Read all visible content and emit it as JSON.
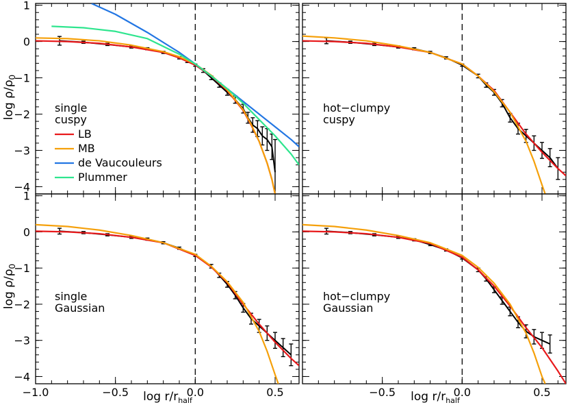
{
  "figure": {
    "xlabel": "log r/r",
    "xlabel_sub": "half",
    "ylabel": "log ρ/ρ",
    "ylabel_sub": "0"
  },
  "colors": {
    "LB": "#e8191b",
    "MB": "#f5a00a",
    "deVaucouleurs": "#2276e3",
    "Plummer": "#2ee58e",
    "data": "#000000"
  },
  "chart_data": [
    {
      "type": "line",
      "id": "single-cuspy",
      "labels": [
        "single",
        "cuspy"
      ],
      "legend": [
        "LB",
        "MB",
        "de Vaucouleurs",
        "Plummer"
      ],
      "xlim": [
        -1.0,
        0.65
      ],
      "ylim": [
        -4.2,
        1.05
      ],
      "xticks": [
        -1.0,
        -0.5,
        0.0,
        0.5
      ],
      "xticklabels": [
        "",
        "",
        "",
        ""
      ],
      "yticks": [
        1,
        0,
        -1,
        -2,
        -3,
        -4
      ],
      "yticklabels": [
        "1",
        "0",
        "−1",
        "−2",
        "−3",
        "−4"
      ],
      "series": [
        {
          "name": "LB",
          "color": "#e8191b",
          "x": [
            -1.0,
            -0.8,
            -0.6,
            -0.4,
            -0.2,
            -0.1,
            0.0,
            0.1,
            0.2,
            0.3,
            0.35,
            0.4,
            0.45,
            0.48,
            0.5
          ],
          "y": [
            0.02,
            0.0,
            -0.05,
            -0.15,
            -0.3,
            -0.45,
            -0.65,
            -0.95,
            -1.35,
            -1.9,
            -2.3,
            -2.75,
            -3.35,
            -3.8,
            -4.2
          ]
        },
        {
          "name": "MB",
          "color": "#f5a00a",
          "x": [
            -1.0,
            -0.8,
            -0.6,
            -0.4,
            -0.2,
            -0.1,
            0.0,
            0.1,
            0.2,
            0.3,
            0.35,
            0.4,
            0.45,
            0.48,
            0.5
          ],
          "y": [
            0.1,
            0.08,
            0.02,
            -0.1,
            -0.28,
            -0.42,
            -0.62,
            -0.93,
            -1.33,
            -1.88,
            -2.28,
            -2.75,
            -3.35,
            -3.8,
            -4.2
          ]
        },
        {
          "name": "de Vaucouleurs",
          "color": "#2276e3",
          "x": [
            -0.65,
            -0.5,
            -0.3,
            -0.1,
            0.0,
            0.1,
            0.2,
            0.3,
            0.4,
            0.5,
            0.6,
            0.65
          ],
          "y": [
            1.05,
            0.75,
            0.25,
            -0.3,
            -0.62,
            -0.95,
            -1.3,
            -1.65,
            -2.0,
            -2.35,
            -2.7,
            -2.9
          ]
        },
        {
          "name": "Plummer",
          "color": "#2ee58e",
          "x": [
            -0.9,
            -0.7,
            -0.5,
            -0.3,
            -0.1,
            0.0,
            0.1,
            0.2,
            0.3,
            0.4,
            0.5,
            0.6,
            0.65
          ],
          "y": [
            0.42,
            0.38,
            0.28,
            0.08,
            -0.35,
            -0.62,
            -0.95,
            -1.3,
            -1.7,
            -2.15,
            -2.6,
            -3.1,
            -3.4
          ]
        }
      ],
      "data_points": {
        "x": [
          -0.85,
          -0.7,
          -0.55,
          -0.4,
          -0.3,
          -0.2,
          -0.1,
          -0.05,
          0.0,
          0.05,
          0.1,
          0.15,
          0.2,
          0.25,
          0.3,
          0.33,
          0.36,
          0.39,
          0.42,
          0.45,
          0.48,
          0.5
        ],
        "y": [
          0.02,
          -0.02,
          -0.08,
          -0.15,
          -0.2,
          -0.3,
          -0.45,
          -0.55,
          -0.65,
          -0.8,
          -1.0,
          -1.2,
          -1.4,
          -1.6,
          -1.85,
          -2.1,
          -2.3,
          -2.4,
          -2.6,
          -2.7,
          -2.9,
          -3.6
        ],
        "err": [
          0.12,
          0.03,
          0.03,
          0.03,
          0.03,
          0.03,
          0.03,
          0.03,
          0.03,
          0.05,
          0.05,
          0.06,
          0.08,
          0.1,
          0.12,
          0.15,
          0.2,
          0.22,
          0.25,
          0.3,
          0.35,
          0.9
        ]
      }
    },
    {
      "type": "line",
      "id": "hot-clumpy-cuspy",
      "labels": [
        "hot−clumpy",
        "cuspy"
      ],
      "legend": [],
      "xlim": [
        -1.0,
        0.65
      ],
      "ylim": [
        -4.2,
        1.05
      ],
      "xticks": [
        -1.0,
        -0.5,
        0.0,
        0.5
      ],
      "xticklabels": [
        "",
        "",
        "",
        ""
      ],
      "yticks": [
        1,
        0,
        -1,
        -2,
        -3,
        -4
      ],
      "yticklabels": [
        "",
        "",
        "",
        "",
        "",
        ""
      ],
      "series": [
        {
          "name": "LB",
          "color": "#e8191b",
          "x": [
            -1.0,
            -0.8,
            -0.6,
            -0.4,
            -0.2,
            0.0,
            0.1,
            0.2,
            0.3,
            0.4,
            0.5,
            0.6,
            0.65
          ],
          "y": [
            0.02,
            0.0,
            -0.05,
            -0.15,
            -0.3,
            -0.62,
            -0.95,
            -1.35,
            -1.95,
            -2.55,
            -3.05,
            -3.5,
            -3.7
          ]
        },
        {
          "name": "MB",
          "color": "#f5a00a",
          "x": [
            -1.0,
            -0.8,
            -0.6,
            -0.4,
            -0.2,
            0.0,
            0.1,
            0.2,
            0.3,
            0.4,
            0.45,
            0.5,
            0.52
          ],
          "y": [
            0.15,
            0.1,
            0.02,
            -0.12,
            -0.3,
            -0.62,
            -0.95,
            -1.38,
            -1.95,
            -2.75,
            -3.3,
            -3.95,
            -4.2
          ]
        }
      ],
      "data_points": {
        "x": [
          -0.85,
          -0.7,
          -0.55,
          -0.4,
          -0.3,
          -0.2,
          -0.1,
          0.0,
          0.1,
          0.15,
          0.2,
          0.25,
          0.3,
          0.35,
          0.4,
          0.45,
          0.5,
          0.55,
          0.6
        ],
        "y": [
          0.02,
          -0.02,
          -0.08,
          -0.15,
          -0.2,
          -0.3,
          -0.45,
          -0.65,
          -0.95,
          -1.2,
          -1.4,
          -1.7,
          -2.1,
          -2.4,
          -2.6,
          -2.8,
          -3.0,
          -3.2,
          -3.5
        ],
        "err": [
          0.08,
          0.03,
          0.03,
          0.03,
          0.03,
          0.03,
          0.03,
          0.03,
          0.05,
          0.06,
          0.08,
          0.1,
          0.12,
          0.15,
          0.18,
          0.2,
          0.22,
          0.25,
          0.3
        ]
      }
    },
    {
      "type": "line",
      "id": "single-gaussian",
      "labels": [
        "single",
        "Gaussian"
      ],
      "legend": [],
      "xlim": [
        -1.0,
        0.65
      ],
      "ylim": [
        -4.2,
        1.05
      ],
      "xticks": [
        -1.0,
        -0.5,
        0.0,
        0.5
      ],
      "xticklabels": [
        "−1.0",
        "−0.5",
        "0.0",
        "0.5"
      ],
      "yticks": [
        1,
        0,
        -1,
        -2,
        -3,
        -4
      ],
      "yticklabels": [
        "1",
        "0",
        "−1",
        "−2",
        "−3",
        "−4"
      ],
      "series": [
        {
          "name": "LB",
          "color": "#e8191b",
          "x": [
            -1.0,
            -0.8,
            -0.6,
            -0.4,
            -0.2,
            0.0,
            0.1,
            0.2,
            0.3,
            0.4,
            0.5,
            0.6,
            0.65
          ],
          "y": [
            0.02,
            0.0,
            -0.05,
            -0.15,
            -0.3,
            -0.65,
            -0.97,
            -1.4,
            -2.0,
            -2.55,
            -3.05,
            -3.5,
            -3.7
          ]
        },
        {
          "name": "MB",
          "color": "#f5a00a",
          "x": [
            -1.0,
            -0.8,
            -0.6,
            -0.4,
            -0.2,
            0.0,
            0.1,
            0.2,
            0.3,
            0.4,
            0.45,
            0.5,
            0.52
          ],
          "y": [
            0.2,
            0.15,
            0.05,
            -0.1,
            -0.3,
            -0.62,
            -0.95,
            -1.38,
            -1.95,
            -2.75,
            -3.3,
            -3.95,
            -4.2
          ]
        }
      ],
      "data_points": {
        "x": [
          -0.85,
          -0.7,
          -0.55,
          -0.4,
          -0.3,
          -0.2,
          -0.1,
          0.0,
          0.1,
          0.15,
          0.2,
          0.25,
          0.3,
          0.35,
          0.4,
          0.45,
          0.5,
          0.55,
          0.6
        ],
        "y": [
          0.02,
          -0.02,
          -0.08,
          -0.15,
          -0.2,
          -0.3,
          -0.45,
          -0.65,
          -0.95,
          -1.2,
          -1.45,
          -1.75,
          -2.1,
          -2.4,
          -2.6,
          -2.8,
          -3.0,
          -3.2,
          -3.4
        ],
        "err": [
          0.08,
          0.03,
          0.03,
          0.03,
          0.03,
          0.03,
          0.03,
          0.03,
          0.05,
          0.06,
          0.08,
          0.1,
          0.12,
          0.15,
          0.18,
          0.2,
          0.22,
          0.25,
          0.3
        ]
      }
    },
    {
      "type": "line",
      "id": "hot-clumpy-gaussian",
      "labels": [
        "hot−clumpy",
        "Gaussian"
      ],
      "legend": [],
      "xlim": [
        -1.0,
        0.65
      ],
      "ylim": [
        -4.2,
        1.05
      ],
      "xticks": [
        -1.0,
        -0.5,
        0.0,
        0.5
      ],
      "xticklabels": [
        "",
        "−0.5",
        "0.0",
        "0.5"
      ],
      "yticks": [
        1,
        0,
        -1,
        -2,
        -3,
        -4
      ],
      "yticklabels": [
        "",
        "",
        "",
        "",
        "",
        ""
      ],
      "series": [
        {
          "name": "LB",
          "color": "#e8191b",
          "x": [
            -1.0,
            -0.8,
            -0.6,
            -0.4,
            -0.2,
            0.0,
            0.1,
            0.2,
            0.3,
            0.4,
            0.5,
            0.6,
            0.65
          ],
          "y": [
            0.02,
            0.0,
            -0.05,
            -0.15,
            -0.32,
            -0.7,
            -1.05,
            -1.5,
            -2.05,
            -2.65,
            -3.2,
            -3.85,
            -4.2
          ]
        },
        {
          "name": "MB",
          "color": "#f5a00a",
          "x": [
            -1.0,
            -0.8,
            -0.6,
            -0.4,
            -0.2,
            0.0,
            0.1,
            0.2,
            0.3,
            0.4,
            0.45,
            0.5,
            0.52
          ],
          "y": [
            0.2,
            0.15,
            0.05,
            -0.1,
            -0.3,
            -0.65,
            -0.98,
            -1.42,
            -2.0,
            -2.8,
            -3.35,
            -4.0,
            -4.2
          ]
        }
      ],
      "data_points": {
        "x": [
          -0.85,
          -0.7,
          -0.55,
          -0.4,
          -0.3,
          -0.2,
          -0.1,
          0.0,
          0.1,
          0.15,
          0.2,
          0.25,
          0.3,
          0.35,
          0.4,
          0.45,
          0.5,
          0.55
        ],
        "y": [
          0.02,
          -0.02,
          -0.08,
          -0.15,
          -0.22,
          -0.35,
          -0.5,
          -0.72,
          -1.05,
          -1.3,
          -1.6,
          -1.9,
          -2.2,
          -2.5,
          -2.75,
          -2.9,
          -3.0,
          -3.1
        ],
        "err": [
          0.08,
          0.03,
          0.03,
          0.03,
          0.03,
          0.03,
          0.03,
          0.03,
          0.05,
          0.06,
          0.08,
          0.1,
          0.12,
          0.15,
          0.18,
          0.2,
          0.22,
          0.25
        ]
      }
    }
  ]
}
